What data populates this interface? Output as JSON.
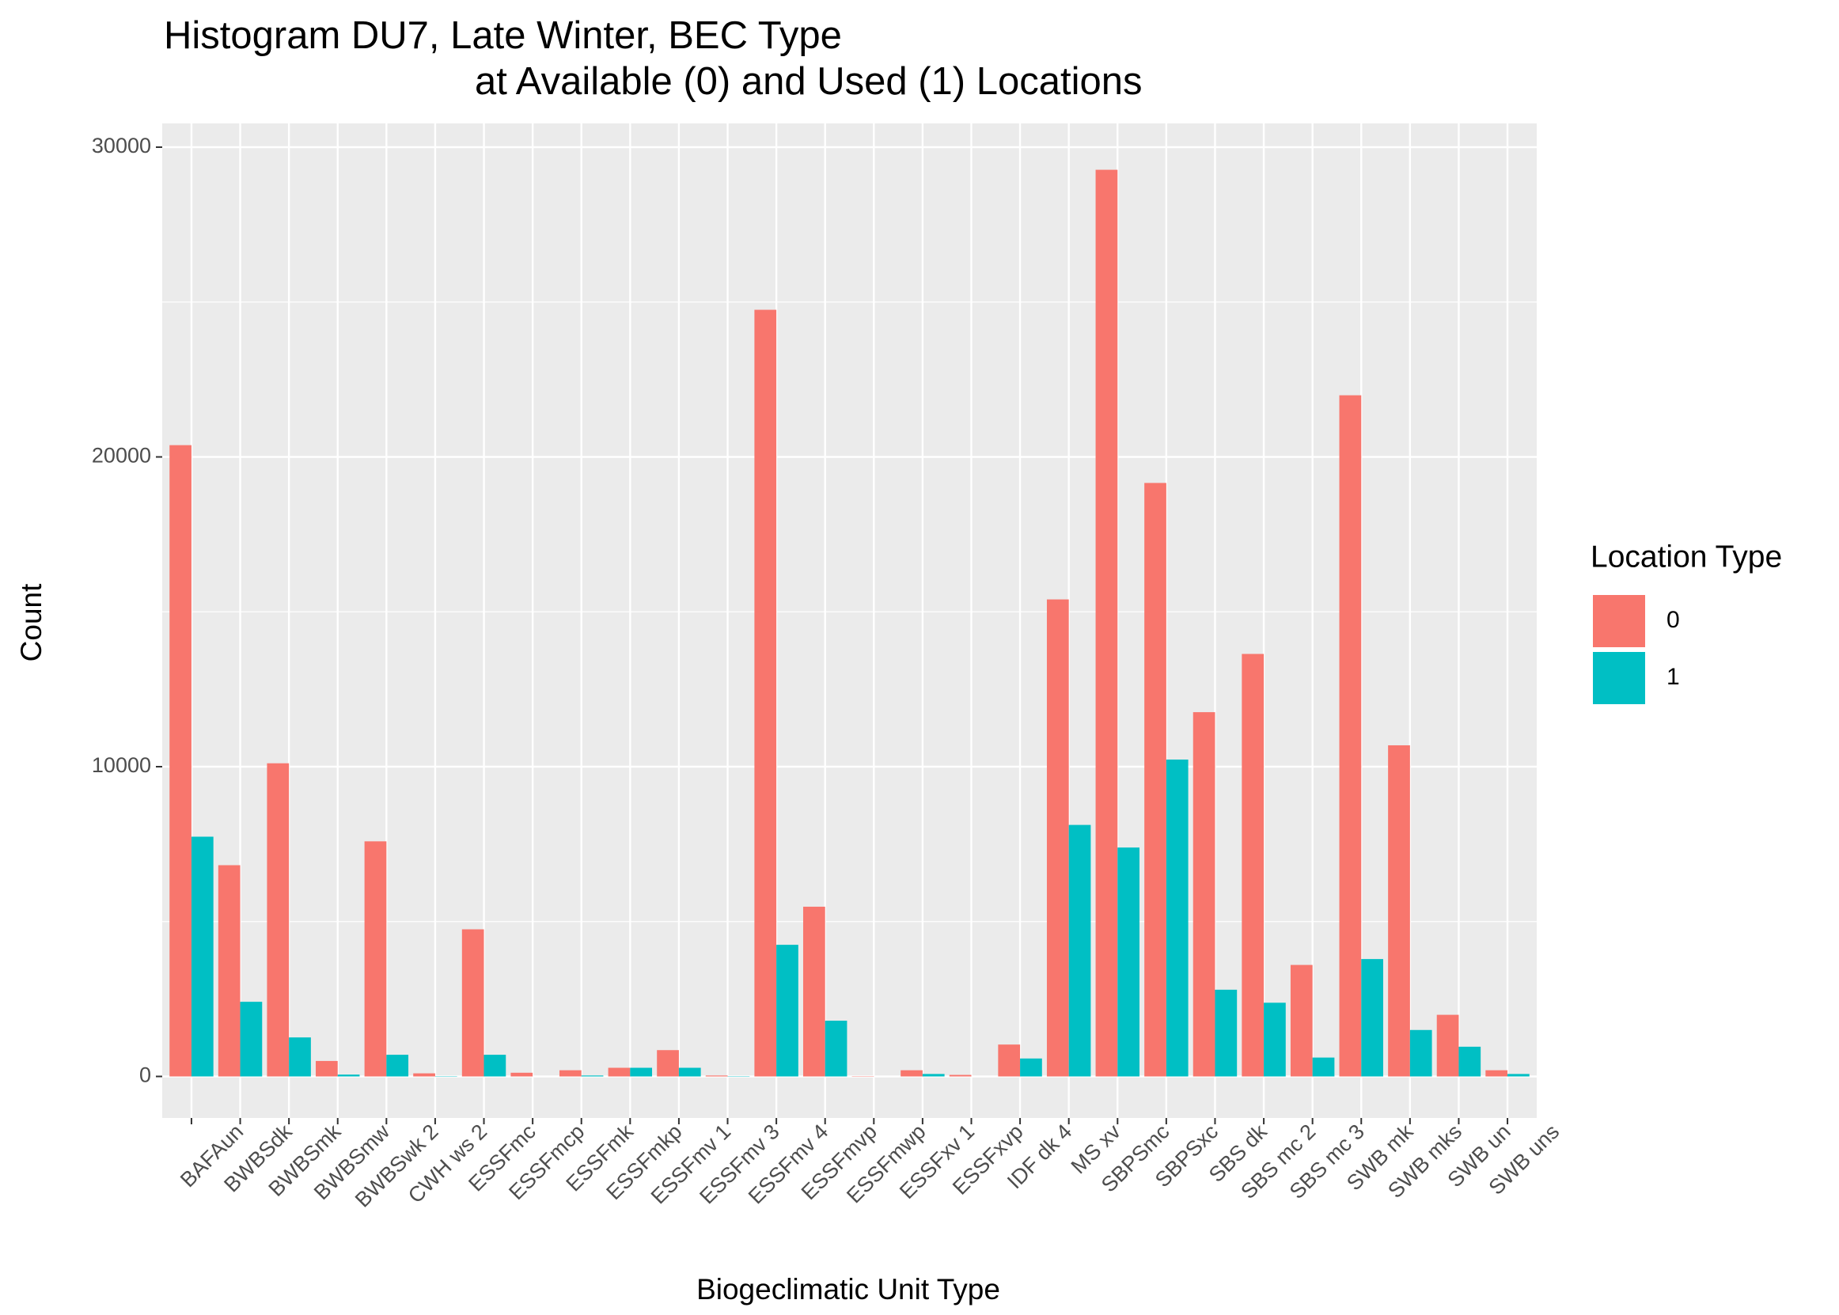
{
  "chart_data": {
    "type": "bar",
    "title": [
      "Histogram DU7, Late Winter, BEC Type",
      "at Available (0) and Used (1) Locations"
    ],
    "x_label": "Biogeclimatic Unit Type",
    "y_label": "Count",
    "legend_title": "Location Type",
    "categories": [
      "BAFAun",
      "BWBSdk",
      "BWBSmk",
      "BWBSmw",
      "BWBSwk 2",
      "CWH ws 2",
      "ESSFmc",
      "ESSFmcp",
      "ESSFmk",
      "ESSFmkp",
      "ESSFmv 1",
      "ESSFmv 3",
      "ESSFmv 4",
      "ESSFmvp",
      "ESSFmwp",
      "ESSFxv 1",
      "ESSFxvp",
      "IDF dk 4",
      "MS  xv",
      "SBPSmc",
      "SBPSxc",
      "SBS dk",
      "SBS mc 2",
      "SBS mc 3",
      "SWB mk",
      "SWB mks",
      "SWB un",
      "SWB uns"
    ],
    "series": [
      {
        "name": "0",
        "color": "#F8766D",
        "values": [
          20380,
          6820,
          10110,
          500,
          7590,
          100,
          4750,
          120,
          200,
          280,
          850,
          30,
          24750,
          5480,
          10,
          200,
          50,
          1030,
          15400,
          29270,
          19160,
          11760,
          13640,
          3600,
          21990,
          10690,
          1990,
          200
        ]
      },
      {
        "name": "1",
        "color": "#00BFC4",
        "values": [
          7740,
          2410,
          1260,
          60,
          700,
          10,
          700,
          0,
          30,
          280,
          280,
          10,
          4250,
          1800,
          0,
          80,
          0,
          580,
          8120,
          7390,
          10230,
          2800,
          2380,
          610,
          3790,
          1500,
          960,
          80
        ]
      }
    ],
    "ylim": [
      -1341,
      30766
    ],
    "yticks": [
      0,
      10000,
      20000,
      30000
    ],
    "grid": true
  }
}
